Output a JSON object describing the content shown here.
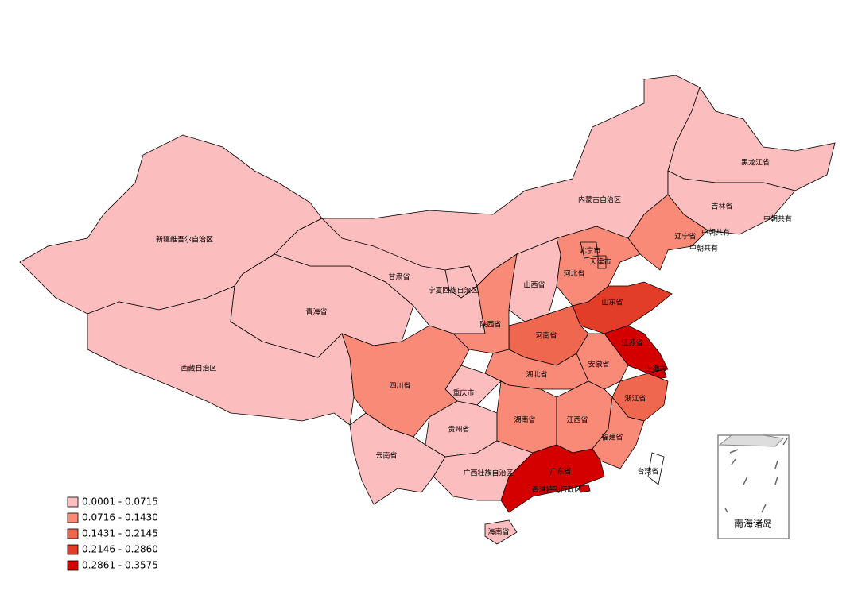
{
  "regions": [
    {
      "label": "新疆维吾尔自治区",
      "color": "#fbbdbd"
    },
    {
      "label": "西藏自治区",
      "color": "#fbbdbd"
    },
    {
      "label": "青海省",
      "color": "#fbbdbd"
    },
    {
      "label": "甘肃省",
      "color": "#fbbdbd"
    },
    {
      "label": "内蒙古自治区",
      "color": "#fbbdbd"
    },
    {
      "label": "黑龙江省",
      "color": "#fbbdbd"
    },
    {
      "label": "吉林省",
      "color": "#fbbdbd"
    },
    {
      "label": "辽宁省",
      "color": "#f98a78"
    },
    {
      "label": "河北省",
      "color": "#f98a78"
    },
    {
      "label": "北京市",
      "color": "#f98a78"
    },
    {
      "label": "天津市",
      "color": "#f98a78"
    },
    {
      "label": "山西省",
      "color": "#fbbdbd"
    },
    {
      "label": "山东省",
      "color": "#e23d28"
    },
    {
      "label": "河南省",
      "color": "#f0674f"
    },
    {
      "label": "陕西省",
      "color": "#f98a78"
    },
    {
      "label": "宁夏回族自治区",
      "color": "#fbbdbd"
    },
    {
      "label": "江苏省",
      "color": "#d40000"
    },
    {
      "label": "上海市",
      "color": "#d40000"
    },
    {
      "label": "安徽省",
      "color": "#f98a78"
    },
    {
      "label": "浙江省",
      "color": "#f0674f"
    },
    {
      "label": "湖北省",
      "color": "#f98a78"
    },
    {
      "label": "重庆市",
      "color": "#fbbdbd"
    },
    {
      "label": "四川省",
      "color": "#f98a78"
    },
    {
      "label": "贵州省",
      "color": "#fbbdbd"
    },
    {
      "label": "湖南省",
      "color": "#f98a78"
    },
    {
      "label": "江西省",
      "color": "#f98a78"
    },
    {
      "label": "福建省",
      "color": "#f98a78"
    },
    {
      "label": "广东省",
      "color": "#d40000"
    },
    {
      "label": "广西壮族自治区",
      "color": "#fbbdbd"
    },
    {
      "label": "云南省",
      "color": "#fbbdbd"
    },
    {
      "label": "海南省",
      "color": "#fbbdbd"
    },
    {
      "label": "台湾省",
      "color": "#ffffff"
    },
    {
      "label": "香港特别行政区",
      "color": "#d40000"
    }
  ],
  "annotations": [
    "中朝共有",
    "中朝共有",
    "中朝共有"
  ],
  "inset_label": "南海诸岛",
  "legend": [
    {
      "label": "0.0001 - 0.0715",
      "color": "#fbbdbd"
    },
    {
      "label": "0.0716 - 0.1430",
      "color": "#f98a78"
    },
    {
      "label": "0.1431 - 0.2145",
      "color": "#f0674f"
    },
    {
      "label": "0.2146 - 0.2860",
      "color": "#e23d28"
    },
    {
      "label": "0.2861 - 0.3575",
      "color": "#d40000"
    }
  ]
}
